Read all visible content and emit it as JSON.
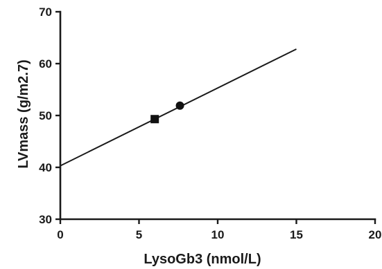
{
  "chart_data": {
    "type": "scatter",
    "title": "",
    "xlabel": "LysoGb3 (nmol/L)",
    "ylabel": "LVmass (g/m2.7)",
    "xlim": [
      0,
      20
    ],
    "ylim": [
      30,
      70
    ],
    "xticks": [
      0,
      5,
      10,
      15,
      20
    ],
    "yticks": [
      30,
      40,
      50,
      60,
      70
    ],
    "grid": false,
    "legend": "none",
    "series": [
      {
        "marker": "square",
        "points": [
          {
            "x": 6.0,
            "y": 49.3
          }
        ]
      },
      {
        "marker": "circle",
        "points": [
          {
            "x": 7.6,
            "y": 51.9
          }
        ]
      }
    ],
    "fit_line": {
      "x": [
        0,
        15
      ],
      "y": [
        40.3,
        62.8
      ]
    }
  }
}
